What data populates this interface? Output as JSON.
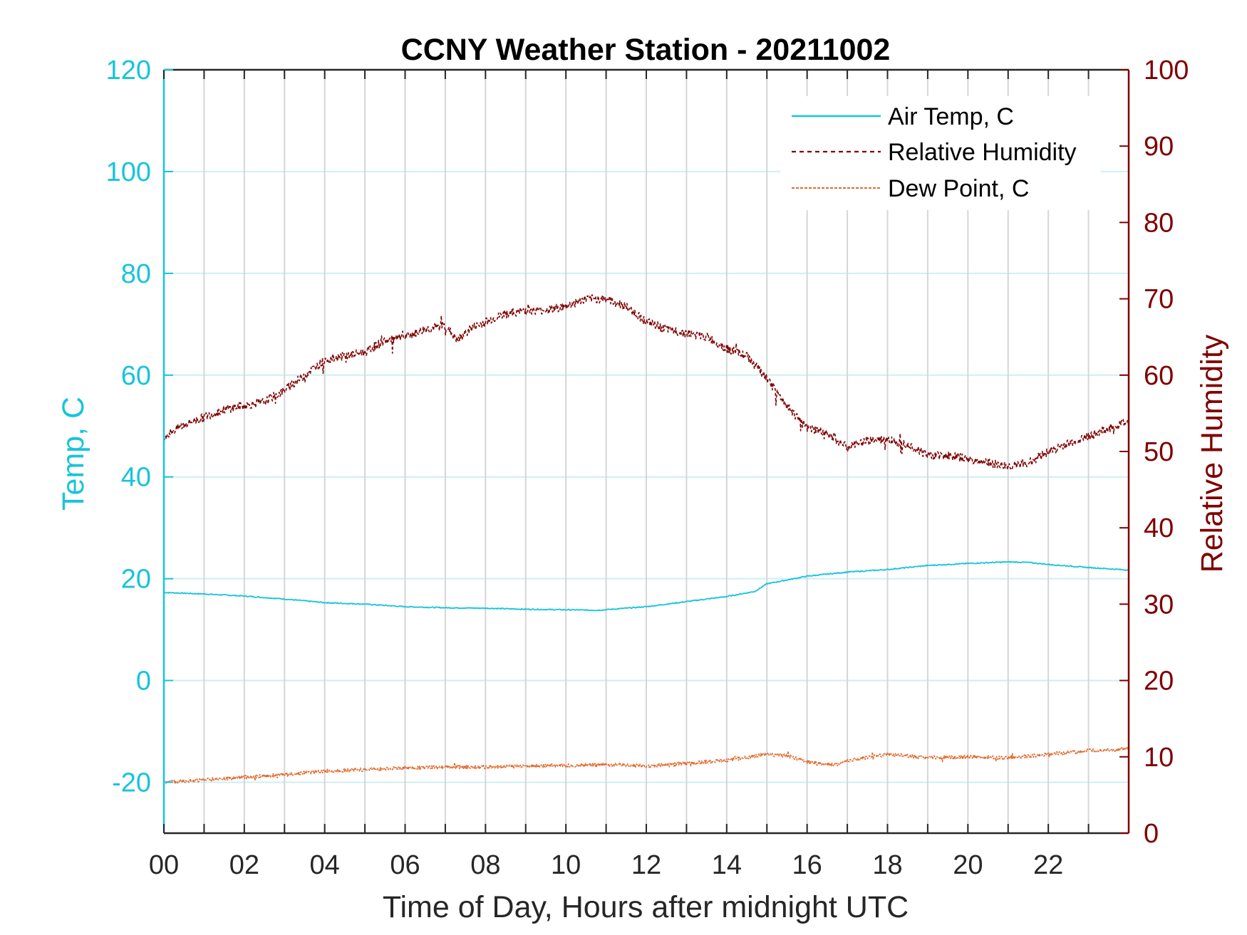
{
  "colors": {
    "left_axis": "#17c4db",
    "right_axis": "#7f0000",
    "air_temp": "#17c4db",
    "humidity": "#7f0000",
    "dew_point": "#e06a2c",
    "hgrid": "#cdeff5",
    "vgrid": "#d4d6d8",
    "x_axis": "#262626"
  },
  "chart_data": {
    "type": "line",
    "title": "CCNY Weather Station - 20211002",
    "xlabel": "Time of Day, Hours after midnight UTC",
    "ylabel_left": "Temp, C",
    "ylabel_right": "Relative Humidity",
    "xlim": [
      0,
      24
    ],
    "ylim_left": [
      -30,
      120
    ],
    "ylim_right": [
      0,
      100
    ],
    "x_ticks": [
      0,
      2,
      4,
      6,
      8,
      10,
      12,
      14,
      16,
      18,
      20,
      22
    ],
    "x_tick_labels": [
      "00",
      "02",
      "04",
      "06",
      "08",
      "10",
      "12",
      "14",
      "16",
      "18",
      "20",
      "22"
    ],
    "x_minor_ticks": [
      1,
      3,
      5,
      7,
      9,
      11,
      13,
      15,
      17,
      19,
      21,
      23
    ],
    "y_left_ticks": [
      -20,
      0,
      20,
      40,
      60,
      80,
      100,
      120
    ],
    "y_left_tick_labels": [
      "-20",
      "0",
      "20",
      "40",
      "60",
      "80",
      "100",
      "120"
    ],
    "y_right_ticks": [
      0,
      10,
      20,
      30,
      40,
      50,
      60,
      70,
      80,
      90,
      100
    ],
    "y_right_tick_labels": [
      "0",
      "10",
      "20",
      "30",
      "40",
      "50",
      "60",
      "70",
      "80",
      "90",
      "100"
    ],
    "legend": {
      "placement": "top-right",
      "entries": [
        "Air Temp, C",
        "Relative Humidity",
        "Dew Point, C"
      ]
    },
    "series": [
      {
        "name": "Air Temp, C",
        "axis": "left",
        "x": [
          0,
          1,
          2,
          3,
          4,
          5,
          6,
          7,
          8,
          9,
          10,
          10.8,
          12,
          13,
          14,
          14.7,
          15,
          16,
          17,
          18,
          19,
          20,
          21,
          21.5,
          22,
          23,
          24
        ],
        "y": [
          17.3,
          17.0,
          16.6,
          16.0,
          15.3,
          15.0,
          14.5,
          14.3,
          14.2,
          14.0,
          13.9,
          13.8,
          14.5,
          15.5,
          16.5,
          17.5,
          19.0,
          20.5,
          21.3,
          21.8,
          22.6,
          23.0,
          23.3,
          23.2,
          22.8,
          22.2,
          21.7
        ]
      },
      {
        "name": "Relative Humidity",
        "axis": "right",
        "x": [
          0,
          0.5,
          1,
          1.5,
          2,
          2.5,
          3,
          3.5,
          4,
          4.5,
          5,
          5.5,
          6,
          6.5,
          7,
          7.3,
          7.6,
          8,
          8.5,
          9,
          9.5,
          10,
          10.5,
          11,
          11.5,
          12,
          12.5,
          13,
          13.5,
          14,
          14.5,
          15,
          15.5,
          16,
          16.5,
          17,
          17.5,
          18,
          18.5,
          19,
          19.5,
          20,
          20.5,
          21,
          21.5,
          22,
          22.5,
          23,
          23.5,
          24
        ],
        "y": [
          52,
          53.5,
          54.5,
          55.5,
          56,
          56.5,
          58,
          60,
          62,
          62.5,
          63,
          64.5,
          65,
          66,
          66.5,
          64.5,
          66,
          67,
          68,
          68.5,
          68.5,
          69,
          70,
          70,
          69,
          67,
          66,
          65.5,
          65,
          63.5,
          62.5,
          59.5,
          56,
          53,
          52.5,
          50.5,
          51.5,
          51.5,
          51,
          49.5,
          49.5,
          49,
          48.5,
          48,
          48.5,
          50,
          51,
          52,
          53,
          54
        ]
      },
      {
        "name": "Dew Point, C",
        "axis": "left",
        "x": [
          0,
          1,
          2,
          3,
          4,
          5,
          6,
          7,
          8,
          9,
          10,
          11,
          12,
          13,
          14,
          15,
          15.5,
          16,
          16.7,
          17,
          18,
          19,
          20,
          21,
          22,
          23,
          24
        ],
        "y": [
          -20.0,
          -19.5,
          -19.0,
          -18.5,
          -17.8,
          -17.5,
          -17.2,
          -17.0,
          -17.0,
          -16.8,
          -16.7,
          -16.5,
          -16.8,
          -16.3,
          -15.7,
          -14.5,
          -14.8,
          -16.0,
          -16.6,
          -15.8,
          -14.5,
          -15.2,
          -15.0,
          -15.2,
          -14.5,
          -13.8,
          -13.5
        ]
      }
    ]
  }
}
